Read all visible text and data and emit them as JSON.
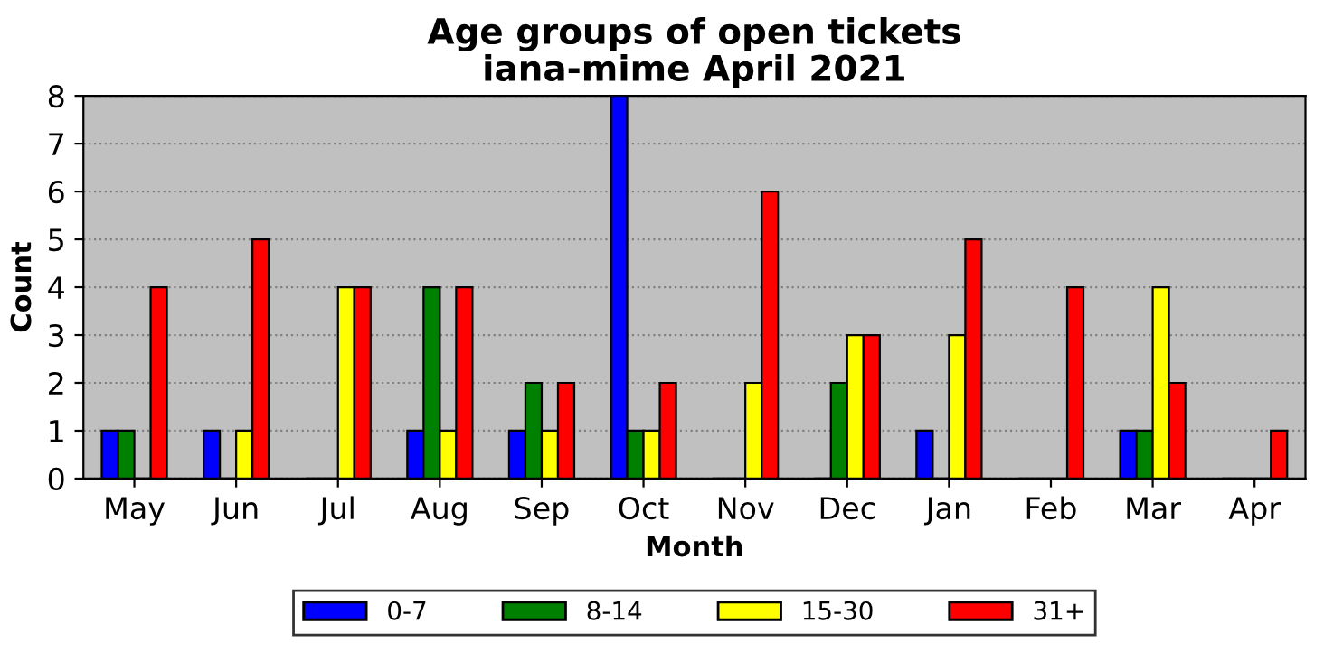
{
  "chart_data": {
    "type": "bar",
    "title": "Age groups of open tickets\niana-mime April 2021",
    "xlabel": "Month",
    "ylabel": "Count",
    "categories": [
      "May",
      "Jun",
      "Jul",
      "Aug",
      "Sep",
      "Oct",
      "Nov",
      "Dec",
      "Jan",
      "Feb",
      "Mar",
      "Apr"
    ],
    "series": [
      {
        "name": "0-7",
        "color": "#0000ff",
        "values": [
          1,
          1,
          0,
          1,
          1,
          8,
          0,
          0,
          1,
          0,
          1,
          0
        ]
      },
      {
        "name": "8-14",
        "color": "#008000",
        "values": [
          1,
          0,
          0,
          4,
          2,
          1,
          0,
          2,
          0,
          0,
          1,
          0
        ]
      },
      {
        "name": "15-30",
        "color": "#ffff00",
        "values": [
          0,
          1,
          4,
          1,
          1,
          1,
          2,
          3,
          3,
          0,
          4,
          0
        ]
      },
      {
        "name": "31+",
        "color": "#ff0000",
        "values": [
          4,
          5,
          4,
          4,
          2,
          2,
          6,
          3,
          5,
          4,
          2,
          1
        ]
      }
    ],
    "ylim": [
      0,
      8
    ],
    "yticks": [
      0,
      1,
      2,
      3,
      4,
      5,
      6,
      7,
      8
    ],
    "grid": "y",
    "legend": "bottom"
  }
}
